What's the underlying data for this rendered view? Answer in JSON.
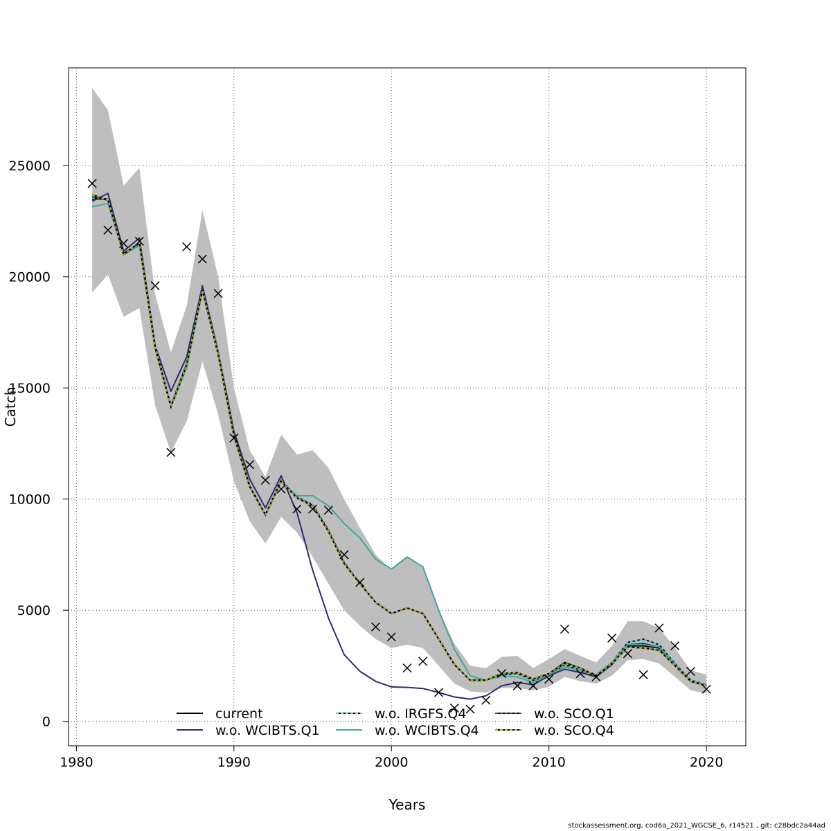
{
  "chart_data": {
    "type": "line",
    "xlabel": "Years",
    "ylabel": "Catch",
    "xlim": [
      1979.5,
      2022.5
    ],
    "ylim": [
      -1100,
      29400
    ],
    "x_ticks": [
      1980,
      1990,
      2000,
      2010,
      2020
    ],
    "y_ticks": [
      0,
      5000,
      10000,
      15000,
      20000,
      25000
    ],
    "grid": true,
    "legend_placement": "bottom",
    "x": [
      1981,
      1982,
      1983,
      1984,
      1985,
      1986,
      1987,
      1988,
      1989,
      1990,
      1991,
      1992,
      1993,
      1994,
      1995,
      1996,
      1997,
      1998,
      1999,
      2000,
      2001,
      2002,
      2003,
      2004,
      2005,
      2006,
      2007,
      2008,
      2009,
      2010,
      2011,
      2012,
      2013,
      2014,
      2015,
      2016,
      2017,
      2018,
      2019,
      2020
    ],
    "band": {
      "color": "#bebebe",
      "upper": [
        28500,
        27500,
        24100,
        24900,
        19200,
        16600,
        18700,
        23000,
        20000,
        15000,
        12200,
        11000,
        12900,
        12000,
        12200,
        11400,
        10000,
        8700,
        7500,
        6800,
        7400,
        6900,
        5000,
        3500,
        2500,
        2400,
        2900,
        2950,
        2400,
        2800,
        3250,
        2950,
        2650,
        3400,
        4500,
        4500,
        4200,
        3300,
        2300,
        2100
      ],
      "lower": [
        19300,
        20100,
        18200,
        18600,
        14200,
        12100,
        13500,
        16200,
        13800,
        10800,
        9000,
        8000,
        9200,
        8500,
        7400,
        6200,
        5000,
        4300,
        3700,
        3300,
        3450,
        3300,
        2500,
        1700,
        1350,
        1300,
        1500,
        1500,
        1400,
        1550,
        2000,
        1800,
        1700,
        2050,
        2750,
        2800,
        2600,
        2000,
        1400,
        1250
      ]
    },
    "series": [
      {
        "name": "current",
        "color": "#000000",
        "dash": "",
        "values": [
          23500,
          23500,
          21050,
          21500,
          16850,
          14200,
          16100,
          19400,
          16500,
          12900,
          10600,
          9300,
          10800,
          10050,
          9700,
          8550,
          7100,
          6200,
          5350,
          4850,
          5100,
          4850,
          3700,
          2550,
          1850,
          1850,
          2100,
          2150,
          1850,
          2100,
          2550,
          2300,
          2050,
          2600,
          3400,
          3400,
          3300,
          2550,
          1800,
          1600
        ]
      },
      {
        "name": "w.o. WCIBTS.Q1",
        "color": "#2d2a6e",
        "dash": "",
        "values": [
          23400,
          23750,
          21150,
          21750,
          16900,
          14850,
          16400,
          19600,
          16650,
          13050,
          10900,
          9600,
          11050,
          9400,
          6800,
          4650,
          3000,
          2250,
          1800,
          1550,
          1530,
          1480,
          1300,
          1100,
          1000,
          1150,
          1600,
          1750,
          1650,
          2050,
          2350,
          2200,
          2000,
          2550,
          3450,
          3500,
          3350,
          2550,
          1800,
          1600
        ]
      },
      {
        "name": "w.o. IRGFS.Q4",
        "color": "#66c2f5",
        "dash": "4,3",
        "values": [
          23550,
          23500,
          21000,
          21550,
          16900,
          14200,
          16100,
          19450,
          16550,
          12850,
          10600,
          9300,
          10850,
          10100,
          9750,
          8600,
          7150,
          6200,
          5350,
          4850,
          5100,
          4850,
          3700,
          2550,
          1850,
          1850,
          2100,
          2150,
          1850,
          2100,
          2550,
          2300,
          2050,
          2650,
          3550,
          3700,
          3450,
          2600,
          1850,
          1650
        ]
      },
      {
        "name": "w.o. WCIBTS.Q4",
        "color": "#3fa79b",
        "dash": "",
        "values": [
          23150,
          23300,
          21000,
          21400,
          16750,
          14150,
          15900,
          19350,
          16600,
          12800,
          10550,
          9250,
          10800,
          10150,
          10150,
          9700,
          8900,
          8250,
          7300,
          6850,
          7400,
          6950,
          5000,
          3250,
          2050,
          1850,
          2050,
          2000,
          1750,
          2100,
          2450,
          2300,
          2100,
          2650,
          3450,
          3450,
          3350,
          2550,
          1800,
          1650
        ]
      },
      {
        "name": "w.o. SCO.Q1",
        "color": "#1a6b2a",
        "dash": "4,3",
        "values": [
          23600,
          23450,
          21000,
          21550,
          16800,
          14150,
          16050,
          19400,
          16500,
          12850,
          10550,
          9300,
          10800,
          10050,
          9700,
          8550,
          7100,
          6200,
          5350,
          4850,
          5100,
          4850,
          3700,
          2550,
          1850,
          1850,
          2150,
          2200,
          1900,
          2150,
          2650,
          2400,
          2050,
          2600,
          3350,
          3300,
          3200,
          2500,
          1800,
          1600
        ]
      },
      {
        "name": "w.o. SCO.Q4",
        "color": "#b5a82c",
        "dash": "4,3",
        "values": [
          23700,
          23450,
          21000,
          21550,
          16800,
          14150,
          16050,
          19400,
          16500,
          12850,
          10550,
          9300,
          10800,
          10050,
          9700,
          8550,
          7100,
          6200,
          5350,
          4850,
          5100,
          4850,
          3700,
          2550,
          1850,
          1850,
          2150,
          2200,
          1900,
          2150,
          2600,
          2400,
          2050,
          2600,
          3350,
          3300,
          3200,
          2500,
          1800,
          1600
        ]
      }
    ],
    "observations": {
      "marker": "x",
      "values": [
        24200,
        22100,
        21500,
        21600,
        19600,
        12100,
        21350,
        20800,
        19250,
        12750,
        11550,
        10850,
        10450,
        9550,
        9550,
        9500,
        7500,
        6250,
        4250,
        3800,
        2400,
        2700,
        1300,
        600,
        550,
        950,
        2150,
        1600,
        1600,
        1900,
        4150,
        2150,
        2000,
        3750,
        3050,
        2100,
        4200,
        3400,
        2250,
        1450
      ]
    }
  },
  "footer": "stockassessment.org, cod6a_2021_WGCSE_6, r14521 , git: c28bdc2a44ad"
}
